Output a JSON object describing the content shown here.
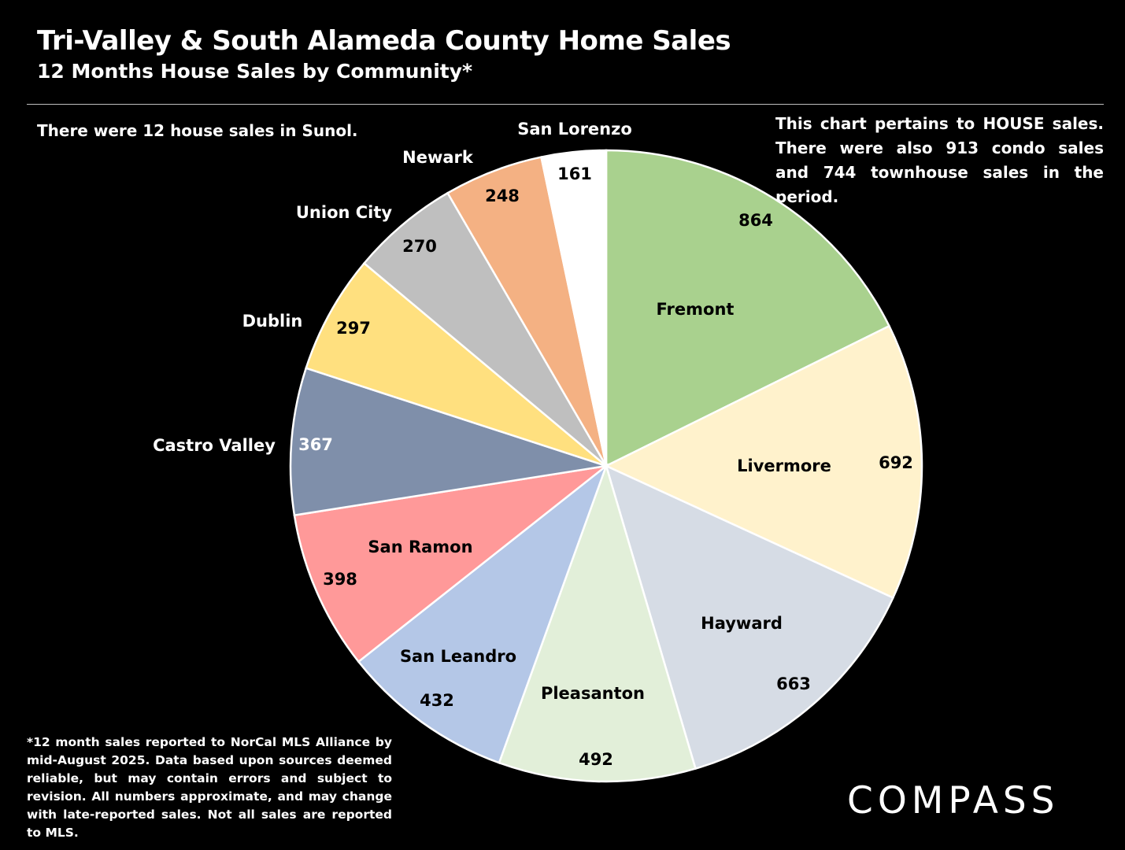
{
  "header": {
    "title": "Tri-Valley & South Alameda County Home Sales",
    "subtitle": "12 Months House Sales by Community*"
  },
  "notes": {
    "left": "There were 12 house sales in Sunol.",
    "right": "This chart pertains to HOUSE sales. There were also 913 condo sales and 744 townhouse sales in the period.",
    "footnote": "*12 month sales reported to NorCal MLS Alliance by mid-August 2025. Data based upon sources deemed reliable, but may contain errors and subject to revision. All numbers approximate, and may change with late-reported sales. Not all sales are reported to MLS."
  },
  "logo": {
    "text": "COMPASS"
  },
  "chart_data": {
    "type": "pie",
    "title": "12 Months House Sales by Community*",
    "categories": [
      "Fremont",
      "Livermore",
      "Hayward",
      "Pleasanton",
      "San Leandro",
      "San Ramon",
      "Castro Valley",
      "Dublin",
      "Union City",
      "Newark",
      "San Lorenzo"
    ],
    "values": [
      864,
      692,
      663,
      492,
      432,
      398,
      367,
      297,
      270,
      248,
      161
    ],
    "colors": [
      "#a9d18e",
      "#fff2cc",
      "#d6dce5",
      "#e2efd9",
      "#b4c7e7",
      "#ff9999",
      "#7f8faa",
      "#ffe07f",
      "#bfbfbf",
      "#f4b183",
      "#ffffff"
    ],
    "start_angle_deg": 0,
    "direction": "clockwise",
    "legend": "none",
    "data_labels": true,
    "category_labels": true
  }
}
